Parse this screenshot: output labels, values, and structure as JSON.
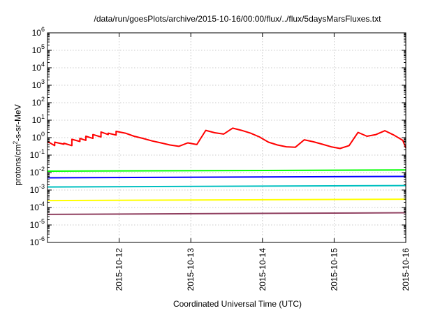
{
  "chart_data": {
    "type": "line",
    "title": "/data/run/goesPlots/archive/2015-10-16/00:00/flux/../flux/5daysMarsFluxes.txt",
    "xlabel": "Coordinated Universal Time (UTC)",
    "ylabel_prefix": "protons/cm",
    "ylabel_sup": "2",
    "ylabel_suffix": "-s-sr-MeV",
    "x_range": [
      "2015-10-11T00:00",
      "2015-10-16T00:00"
    ],
    "xticks": [
      "2015-10-12",
      "2015-10-13",
      "2015-10-14",
      "2015-10-15",
      "2015-10-16"
    ],
    "ylim": [
      1e-06,
      1000000.0
    ],
    "yscale": "log",
    "ytick_base": "10",
    "ytick_exponents": [
      "-6",
      "-5",
      "-4",
      "-3",
      "-2",
      "-1",
      "0",
      "1",
      "2",
      "3",
      "4",
      "5",
      "6"
    ],
    "grid": true,
    "series": [
      {
        "color": "#ff0000",
        "x": [
          "2015-10-11T00:00",
          "2015-10-11T02:24",
          "2015-10-11T02:24",
          "2015-10-11T05:29",
          "2015-10-11T05:29",
          "2015-10-11T08:10",
          "2015-10-11T08:10",
          "2015-10-11T10:51",
          "2015-10-11T10:51",
          "2015-10-11T12:50",
          "2015-10-11T12:50",
          "2015-10-11T15:12",
          "2015-10-11T15:12",
          "2015-10-11T17:55",
          "2015-10-11T17:55",
          "2015-10-11T20:19",
          "2015-10-11T20:19",
          "2015-10-11T22:58",
          "2015-10-11T22:58",
          "2015-10-12T02:05",
          "2015-10-12T05:00",
          "2015-10-12T08:00",
          "2015-10-12T11:00",
          "2015-10-12T14:00",
          "2015-10-12T17:00",
          "2015-10-12T20:00",
          "2015-10-12T23:00",
          "2015-10-13T02:00",
          "2015-10-13T05:00",
          "2015-10-13T08:00",
          "2015-10-13T11:00",
          "2015-10-13T14:00",
          "2015-10-13T17:00",
          "2015-10-13T20:00",
          "2015-10-13T23:00",
          "2015-10-14T02:00",
          "2015-10-14T05:00",
          "2015-10-14T08:00",
          "2015-10-14T11:00",
          "2015-10-14T14:00",
          "2015-10-14T17:00",
          "2015-10-14T20:00",
          "2015-10-14T23:00",
          "2015-10-15T02:00",
          "2015-10-15T05:00",
          "2015-10-15T08:00",
          "2015-10-15T11:00",
          "2015-10-15T14:00",
          "2015-10-15T17:00",
          "2015-10-15T20:00",
          "2015-10-15T23:00",
          "2015-10-16T00:00"
        ],
        "values": [
          0.6,
          0.35,
          0.55,
          0.42,
          0.48,
          0.35,
          0.8,
          0.6,
          0.9,
          0.7,
          1.2,
          0.9,
          1.5,
          1.1,
          2.1,
          1.5,
          1.8,
          1.4,
          2.3,
          1.8,
          1.2,
          0.9,
          0.65,
          0.5,
          0.38,
          0.32,
          0.5,
          0.4,
          2.6,
          1.9,
          1.6,
          3.5,
          2.6,
          1.8,
          1.1,
          0.55,
          0.38,
          0.3,
          0.28,
          0.75,
          0.58,
          0.42,
          0.3,
          0.24,
          0.35,
          2.0,
          1.2,
          1.5,
          2.5,
          1.4,
          0.7,
          0.26
        ]
      },
      {
        "color": "#00ff00",
        "x": [
          "2015-10-11T00:00",
          "2015-10-16T00:00"
        ],
        "values": [
          0.012,
          0.014
        ]
      },
      {
        "color": "#0000ff",
        "x": [
          "2015-10-11T00:00",
          "2015-10-16T00:00"
        ],
        "values": [
          0.005,
          0.006
        ]
      },
      {
        "color": "#00c0c0",
        "x": [
          "2015-10-11T00:00",
          "2015-10-16T00:00"
        ],
        "values": [
          0.0015,
          0.0018
        ]
      },
      {
        "color": "#ffff00",
        "x": [
          "2015-10-11T00:00",
          "2015-10-16T00:00"
        ],
        "values": [
          0.00025,
          0.0003
        ]
      },
      {
        "color": "#904060",
        "x": [
          "2015-10-11T00:00",
          "2015-10-16T00:00"
        ],
        "values": [
          4e-05,
          5e-05
        ]
      }
    ]
  }
}
